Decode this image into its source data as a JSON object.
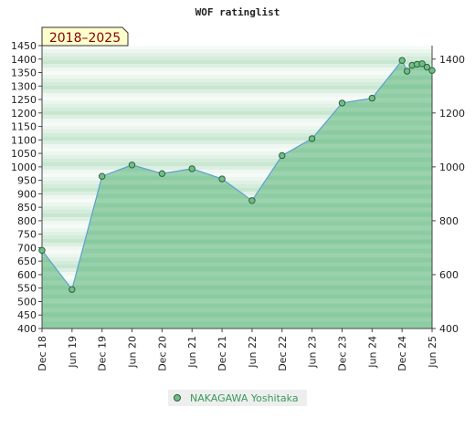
{
  "chart_data": {
    "type": "area",
    "title": "WOF ratinglist",
    "range_label": "2018–2025",
    "x_ticks": [
      "Dec 18",
      "Jun 19",
      "Dec 19",
      "Jun 20",
      "Dec 20",
      "Jun 21",
      "Dec 21",
      "Jun 22",
      "Dec 22",
      "Jun 23",
      "Dec 23",
      "Jun 24",
      "Dec 24",
      "Jun 25"
    ],
    "y_left": {
      "min": 400,
      "max": 1450,
      "step": 50
    },
    "y_right": {
      "ticks": [
        400,
        600,
        800,
        1000,
        1200,
        1400
      ]
    },
    "grid": true,
    "legend_position": "bottom-center",
    "colors": {
      "fill": "#7dc495",
      "line": "#5aa0d0",
      "marker": "#6fbf85",
      "marker_stroke": "#2f5f3f",
      "range_bg": "#ffffcc"
    },
    "series": [
      {
        "name": "NAKAGAWA Yoshitaka",
        "points": [
          {
            "x": "2018-12",
            "y": 690
          },
          {
            "x": "2019-06",
            "y": 545
          },
          {
            "x": "2019-12",
            "y": 965
          },
          {
            "x": "2020-06",
            "y": 1007
          },
          {
            "x": "2020-12",
            "y": 975
          },
          {
            "x": "2021-06",
            "y": 993
          },
          {
            "x": "2021-12",
            "y": 955
          },
          {
            "x": "2022-06",
            "y": 875
          },
          {
            "x": "2022-12",
            "y": 1042
          },
          {
            "x": "2023-06",
            "y": 1105
          },
          {
            "x": "2023-12",
            "y": 1237
          },
          {
            "x": "2024-06",
            "y": 1255
          },
          {
            "x": "2024-12",
            "y": 1395
          },
          {
            "x": "2025-01",
            "y": 1355
          },
          {
            "x": "2025-02",
            "y": 1377
          },
          {
            "x": "2025-03",
            "y": 1381
          },
          {
            "x": "2025-04",
            "y": 1383
          },
          {
            "x": "2025-05",
            "y": 1370
          },
          {
            "x": "2025-06",
            "y": 1358
          }
        ]
      }
    ]
  }
}
